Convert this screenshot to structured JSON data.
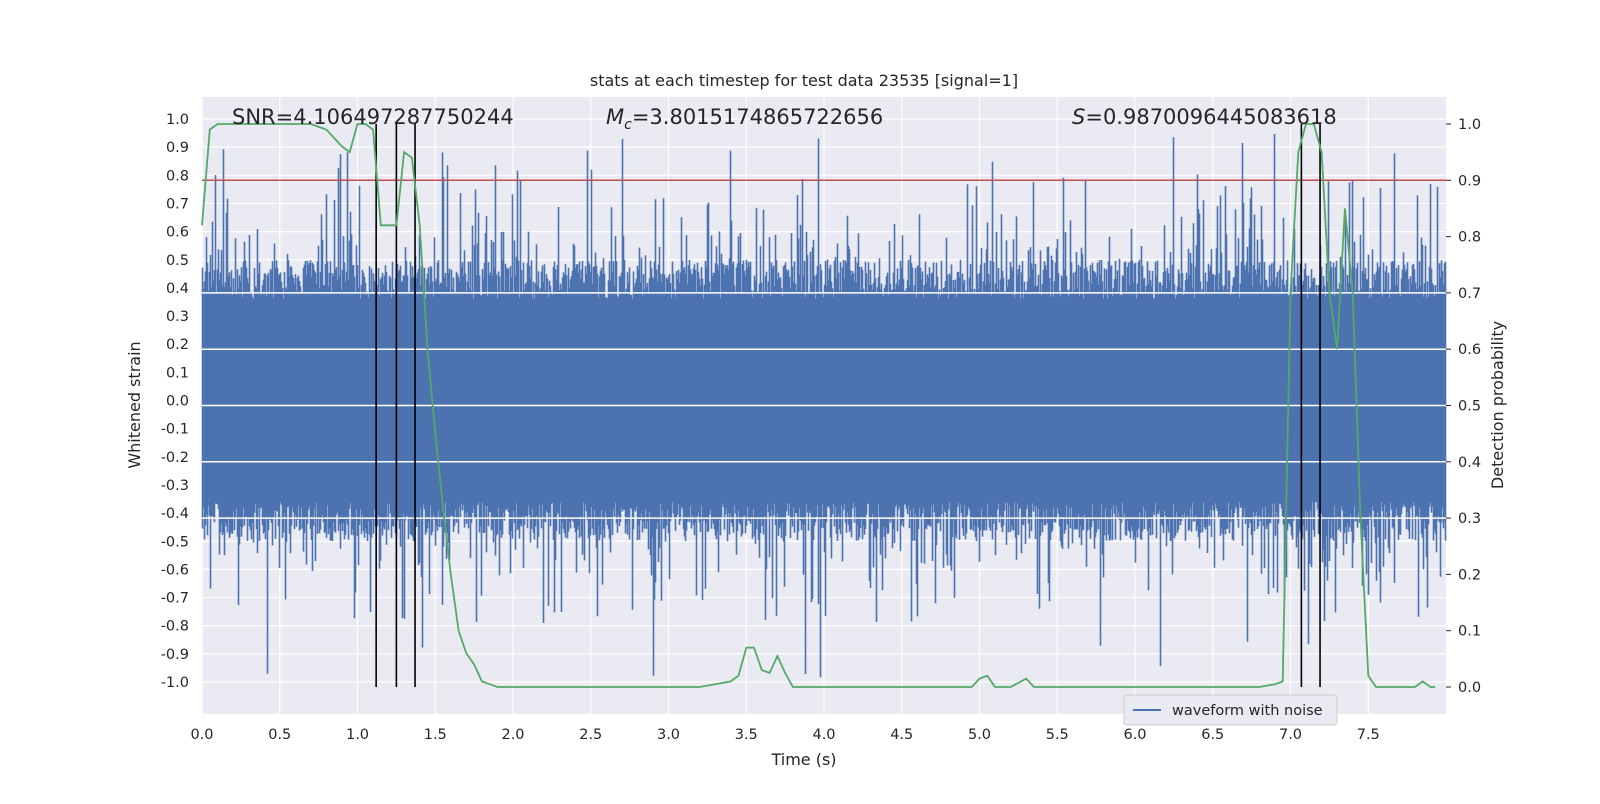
{
  "chart_data": {
    "type": "line",
    "title": "stats at each timestep for test data 23535 [signal=1]",
    "xlabel": "Time (s)",
    "ylabel_left": "Whitened strain",
    "ylabel_right": "Detection probability",
    "xlim": [
      0.0,
      8.0
    ],
    "ylim_left": [
      -1.1,
      1.05
    ],
    "ylim_right": [
      -0.05,
      1.05
    ],
    "x_ticks": [
      0.0,
      0.5,
      1.0,
      1.5,
      2.0,
      2.5,
      3.0,
      3.5,
      4.0,
      4.5,
      5.0,
      5.5,
      6.0,
      6.5,
      7.0,
      7.5
    ],
    "x_tick_labels": [
      "0.0",
      "0.5",
      "1.0",
      "1.5",
      "2.0",
      "2.5",
      "3.0",
      "3.5",
      "4.0",
      "4.5",
      "5.0",
      "5.5",
      "6.0",
      "6.5",
      "7.0",
      "7.5"
    ],
    "y_left_ticks": [
      1.0,
      0.9,
      0.8,
      0.7,
      0.6,
      0.5,
      0.4,
      0.3,
      0.2,
      0.1,
      0.0,
      -0.1,
      -0.2,
      -0.3,
      -0.4,
      -0.5,
      -0.6,
      -0.7,
      -0.8,
      -0.9,
      -1.0
    ],
    "y_left_tick_labels": [
      "1.0",
      "0.9",
      "0.8",
      "0.7",
      "0.6",
      "0.5",
      "0.4",
      "0.3",
      "0.2",
      "0.1",
      "0.0",
      "-0.1",
      "-0.2",
      "-0.3",
      "-0.4",
      "-0.5",
      "-0.6",
      "-0.7",
      "-0.8",
      "-0.9",
      "-1.0"
    ],
    "y_right_ticks": [
      1.0,
      0.9,
      0.8,
      0.7,
      0.6,
      0.5,
      0.4,
      0.3,
      0.2,
      0.1,
      0.0
    ],
    "y_right_tick_labels": [
      "1.0",
      "0.9",
      "0.8",
      "0.7",
      "0.6",
      "0.5",
      "0.4",
      "0.3",
      "0.2",
      "0.1",
      "0.0"
    ],
    "annotations": {
      "snr": "SNR=4.106497287750244",
      "mc_symbol": "M",
      "mc_sub": "c",
      "mc_value": "=3.8015174865722656",
      "s_symbol": "S",
      "s_value": "=0.9870096445083618"
    },
    "threshold": 0.9,
    "threshold_color": "#c44e52",
    "vertical_lines": [
      1.12,
      1.25,
      1.37,
      7.07,
      7.19
    ],
    "series": [
      {
        "name": "waveform with noise",
        "color": "#4c72b0",
        "axis": "left",
        "kind": "noise",
        "duration_s": 8.0,
        "bulk_amplitude": 0.4,
        "peak_max": 0.95,
        "peak_min": -1.0
      },
      {
        "name": "detection probability",
        "color": "#55a868",
        "axis": "right",
        "x": [
          0.0,
          0.05,
          0.1,
          0.2,
          0.3,
          0.4,
          0.5,
          0.6,
          0.7,
          0.8,
          0.9,
          0.95,
          1.0,
          1.05,
          1.1,
          1.15,
          1.2,
          1.25,
          1.3,
          1.35,
          1.4,
          1.45,
          1.5,
          1.55,
          1.6,
          1.65,
          1.7,
          1.75,
          1.8,
          1.85,
          1.9,
          2.0,
          2.2,
          2.4,
          2.6,
          2.8,
          3.0,
          3.2,
          3.3,
          3.4,
          3.45,
          3.5,
          3.55,
          3.6,
          3.65,
          3.7,
          3.75,
          3.8,
          3.85,
          3.9,
          4.0,
          4.2,
          4.4,
          4.6,
          4.8,
          4.95,
          5.0,
          5.05,
          5.1,
          5.15,
          5.2,
          5.3,
          5.35,
          5.4,
          5.5,
          5.6,
          5.8,
          6.0,
          6.2,
          6.4,
          6.6,
          6.8,
          6.9,
          6.95,
          7.0,
          7.05,
          7.1,
          7.15,
          7.2,
          7.25,
          7.3,
          7.35,
          7.4,
          7.45,
          7.5,
          7.55,
          7.6,
          7.7,
          7.8,
          7.85,
          7.9,
          7.93
        ],
        "values": [
          0.82,
          0.99,
          1.0,
          1.0,
          1.0,
          1.0,
          1.0,
          1.0,
          1.0,
          0.99,
          0.96,
          0.95,
          1.0,
          1.0,
          0.99,
          0.82,
          0.82,
          0.82,
          0.95,
          0.94,
          0.82,
          0.6,
          0.45,
          0.32,
          0.2,
          0.1,
          0.06,
          0.04,
          0.01,
          0.005,
          0.0,
          0.0,
          0.0,
          0.0,
          0.0,
          0.0,
          0.0,
          0.0,
          0.005,
          0.01,
          0.02,
          0.07,
          0.07,
          0.03,
          0.025,
          0.055,
          0.025,
          0.0,
          0.0,
          0.0,
          0.0,
          0.0,
          0.0,
          0.0,
          0.0,
          0.0,
          0.015,
          0.02,
          0.0,
          0.0,
          0.0,
          0.015,
          0.0,
          0.0,
          0.0,
          0.0,
          0.0,
          0.0,
          0.0,
          0.0,
          0.0,
          0.0,
          0.005,
          0.01,
          0.7,
          0.95,
          1.0,
          1.0,
          0.95,
          0.7,
          0.6,
          0.85,
          0.7,
          0.3,
          0.02,
          0.0,
          0.0,
          0.0,
          0.0,
          0.01,
          0.0,
          0.0
        ]
      }
    ],
    "legend": {
      "placement": "bottom-right",
      "label": "waveform with noise"
    }
  }
}
